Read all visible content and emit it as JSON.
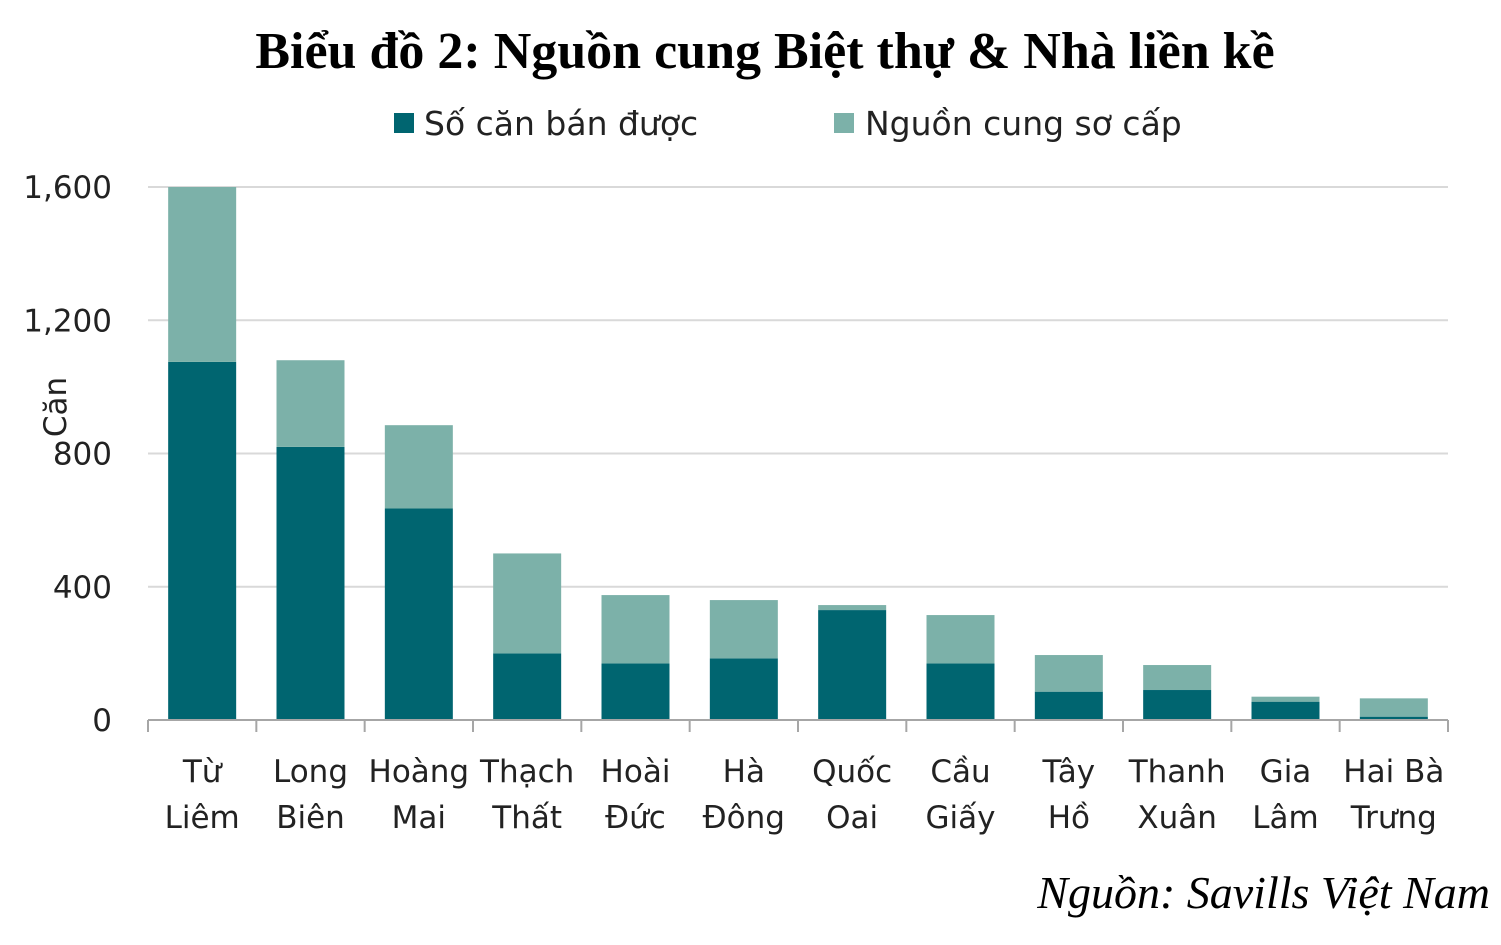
{
  "chart_data": {
    "type": "bar",
    "stacked": true,
    "title": "Biểu đồ 2: Nguồn cung Biệt thự & Nhà liền kề",
    "ylabel": "Căn",
    "xlabel": "",
    "ylim": [
      0,
      1600
    ],
    "yticks": [
      0,
      400,
      800,
      1200,
      1600
    ],
    "ytick_labels": [
      "0",
      "400",
      "800",
      "1,200",
      "1,600"
    ],
    "grid": true,
    "legend_position": "top-center",
    "categories": [
      [
        "Từ",
        "Liêm"
      ],
      [
        "Long",
        "Biên"
      ],
      [
        "Hoàng",
        "Mai"
      ],
      [
        "Thạch",
        "Thất"
      ],
      [
        "Hoài",
        "Đức"
      ],
      [
        "Hà",
        "Đông"
      ],
      [
        "Quốc",
        "Oai"
      ],
      [
        "Cầu",
        "Giấy"
      ],
      [
        "Tây",
        "Hồ"
      ],
      [
        "Thanh",
        "Xuân"
      ],
      [
        "Gia",
        "Lâm"
      ],
      [
        "Hai Bà",
        "Trưng"
      ]
    ],
    "series": [
      {
        "name": "Số căn bán được",
        "color": "#006570",
        "values": [
          1075,
          820,
          635,
          200,
          170,
          185,
          330,
          170,
          85,
          90,
          55,
          10
        ]
      },
      {
        "name": "Nguồn cung sơ cấp",
        "color": "#7cb1a9",
        "values": [
          525,
          260,
          250,
          300,
          205,
          175,
          15,
          145,
          110,
          75,
          15,
          55
        ]
      }
    ]
  },
  "source_note": "Nguồn: Savills Việt Nam"
}
